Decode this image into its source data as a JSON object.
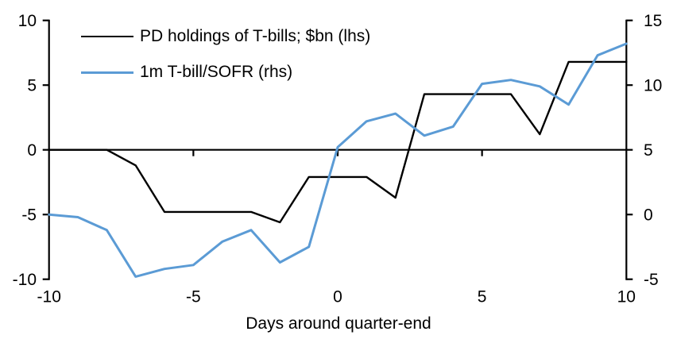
{
  "chart_data": {
    "type": "line",
    "title": "",
    "xlabel": "Days around quarter-end",
    "x": [
      -10,
      -9,
      -8,
      -7,
      -6,
      -5,
      -4,
      -3,
      -2,
      -1,
      0,
      1,
      2,
      3,
      4,
      5,
      6,
      7,
      8,
      9,
      10
    ],
    "series": [
      {
        "name": "PD holdings of T-bills; $bn (lhs)",
        "axis": "left",
        "color": "#000000",
        "line_width": 2.4,
        "values": [
          0,
          0,
          0,
          -1.2,
          -4.8,
          -4.8,
          -4.8,
          -4.8,
          -5.6,
          -2.1,
          -2.1,
          -2.1,
          -3.7,
          4.3,
          4.3,
          4.3,
          4.3,
          1.2,
          6.8,
          6.8,
          6.8
        ]
      },
      {
        "name": "1m T-bill/SOFR (rhs)",
        "axis": "right",
        "color": "#5B9BD5",
        "line_width": 3,
        "values": [
          0.0,
          -0.2,
          -1.2,
          -4.8,
          -4.2,
          -3.9,
          -2.1,
          -1.2,
          -3.7,
          -2.5,
          5.2,
          7.2,
          7.8,
          6.1,
          6.8,
          10.1,
          10.4,
          9.9,
          8.5,
          12.3,
          13.2
        ]
      }
    ],
    "left_axis": {
      "min": -10,
      "max": 10,
      "ticks": [
        10,
        5,
        0,
        -5,
        -10
      ]
    },
    "right_axis": {
      "min": -5,
      "max": 15,
      "ticks": [
        15,
        10,
        5,
        0,
        -5
      ]
    },
    "x_axis": {
      "min": -10,
      "max": 10,
      "ticks": [
        -10,
        -5,
        0,
        5,
        10
      ],
      "crossing_at": 0
    },
    "grid": false,
    "legend_position": "top-left",
    "axis_color": "#000000"
  }
}
